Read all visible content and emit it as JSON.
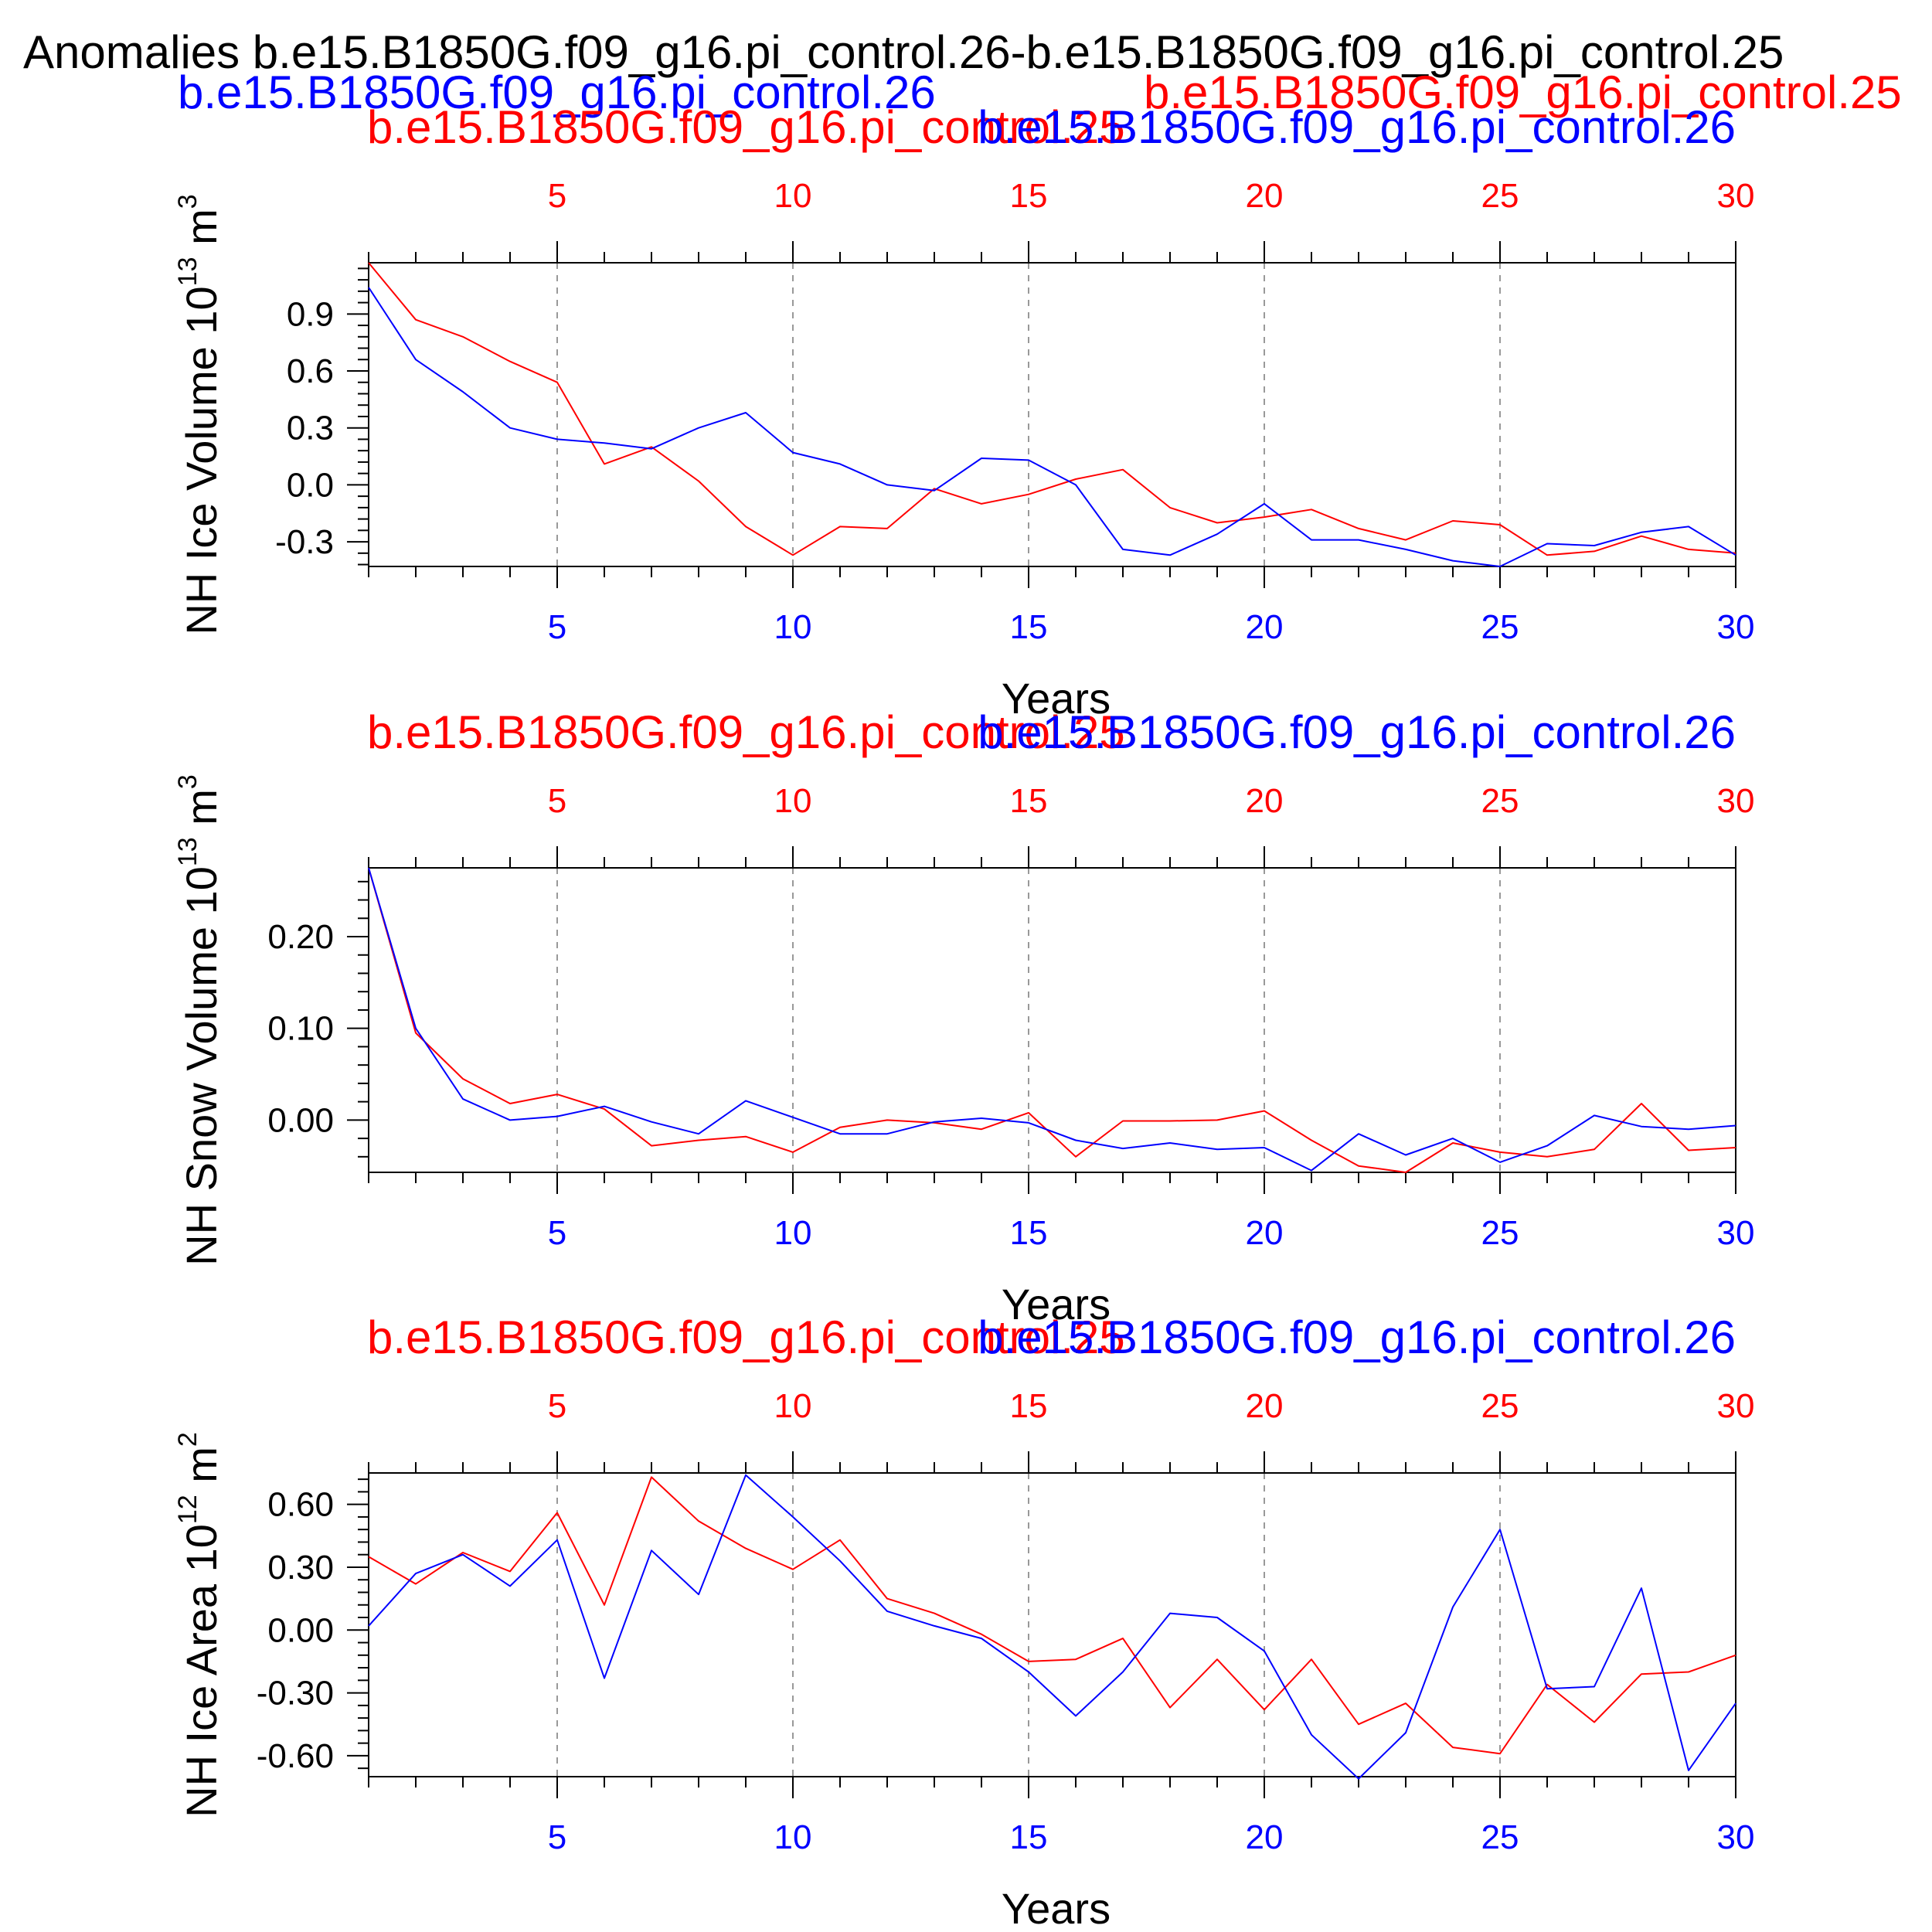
{
  "header": {
    "title": "Anomalies b.e15.B1850G.f09_g16.pi_control.26-b.e15.B1850G.f09_g16.pi_control.25",
    "legend_left": "b.e15.B1850G.f09_g16.pi_control.26",
    "legend_right": "b.e15.B1850G.f09_g16.pi_control.25"
  },
  "colors": {
    "series_a": "#ff0000",
    "series_b": "#0000ff",
    "axis": "#000000",
    "grid": "#999999"
  },
  "chart_data": [
    {
      "type": "line",
      "ylabel_main": "NH Ice Volume 10",
      "ylabel_sup": "13",
      "ylabel_unit": "m",
      "ylabel_unit_sup": "3",
      "xlabel": "Years",
      "top_left_label": "b.e15.B1850G.f09_g16.pi_control.25",
      "top_right_label": "b.e15.B1850G.f09_g16.pi_control.26",
      "xlim": [
        1,
        30
      ],
      "ylim": [
        -0.43,
        1.17
      ],
      "xticks": [
        "5",
        "10",
        "15",
        "20",
        "25",
        "30"
      ],
      "xtick_values": [
        5,
        10,
        15,
        20,
        25,
        30
      ],
      "yticks": [
        "0.9",
        "0.6",
        "0.3",
        "0.0",
        "-0.3"
      ],
      "ytick_values": [
        0.9,
        0.6,
        0.3,
        0.0,
        -0.3
      ],
      "x": [
        1,
        2,
        3,
        4,
        5,
        6,
        7,
        8,
        9,
        10,
        11,
        12,
        13,
        14,
        15,
        16,
        17,
        18,
        19,
        20,
        21,
        22,
        23,
        24,
        25,
        26,
        27,
        28,
        29,
        30
      ],
      "series": [
        {
          "name": "b.e15.B1850G.f09_g16.pi_control.25",
          "color": "#ff0000",
          "values": [
            1.17,
            0.87,
            0.78,
            0.65,
            0.54,
            0.11,
            0.2,
            0.02,
            -0.22,
            -0.37,
            -0.22,
            -0.23,
            -0.02,
            -0.1,
            -0.05,
            0.03,
            0.08,
            -0.12,
            -0.2,
            -0.17,
            -0.13,
            -0.23,
            -0.29,
            -0.19,
            -0.21,
            -0.37,
            -0.35,
            -0.27,
            -0.34,
            -0.36
          ]
        },
        {
          "name": "b.e15.B1850G.f09_g16.pi_control.26",
          "color": "#0000ff",
          "values": [
            1.04,
            0.66,
            0.49,
            0.3,
            0.24,
            0.22,
            0.19,
            0.3,
            0.38,
            0.17,
            0.11,
            0.0,
            -0.03,
            0.14,
            0.13,
            0.0,
            -0.34,
            -0.37,
            -0.26,
            -0.1,
            -0.29,
            -0.29,
            -0.34,
            -0.4,
            -0.43,
            -0.31,
            -0.32,
            -0.25,
            -0.22,
            -0.37
          ]
        }
      ]
    },
    {
      "type": "line",
      "ylabel_main": "NH Snow Volume 10",
      "ylabel_sup": "13",
      "ylabel_unit": "m",
      "ylabel_unit_sup": "3",
      "xlabel": "Years",
      "top_left_label": "b.e15.B1850G.f09_g16.pi_control.25",
      "top_right_label": "b.e15.B1850G.f09_g16.pi_control.26",
      "xlim": [
        1,
        30
      ],
      "ylim": [
        -0.057,
        0.275
      ],
      "xticks": [
        "5",
        "10",
        "15",
        "20",
        "25",
        "30"
      ],
      "xtick_values": [
        5,
        10,
        15,
        20,
        25,
        30
      ],
      "yticks": [
        "0.20",
        "0.10",
        "0.00"
      ],
      "ytick_values": [
        0.2,
        0.1,
        0.0
      ],
      "x": [
        1,
        2,
        3,
        4,
        5,
        6,
        7,
        8,
        9,
        10,
        11,
        12,
        13,
        14,
        15,
        16,
        17,
        18,
        19,
        20,
        21,
        22,
        23,
        24,
        25,
        26,
        27,
        28,
        29,
        30
      ],
      "series": [
        {
          "name": "b.e15.B1850G.f09_g16.pi_control.25",
          "color": "#ff0000",
          "values": [
            0.275,
            0.095,
            0.045,
            0.018,
            0.028,
            0.012,
            -0.028,
            -0.022,
            -0.018,
            -0.035,
            -0.008,
            0.0,
            -0.003,
            -0.01,
            0.008,
            -0.04,
            -0.001,
            -0.001,
            0.0,
            0.01,
            -0.022,
            -0.05,
            -0.057,
            -0.025,
            -0.035,
            -0.04,
            -0.032,
            0.018,
            -0.033,
            -0.03
          ]
        },
        {
          "name": "b.e15.B1850G.f09_g16.pi_control.26",
          "color": "#0000ff",
          "values": [
            0.275,
            0.1,
            0.023,
            0.0,
            0.004,
            0.015,
            -0.002,
            -0.015,
            0.021,
            0.003,
            -0.015,
            -0.015,
            -0.002,
            0.002,
            -0.003,
            -0.022,
            -0.031,
            -0.025,
            -0.032,
            -0.03,
            -0.055,
            -0.015,
            -0.038,
            -0.02,
            -0.046,
            -0.028,
            0.005,
            -0.007,
            -0.01,
            -0.006
          ]
        }
      ]
    },
    {
      "type": "line",
      "ylabel_main": "NH Ice Area 10",
      "ylabel_sup": "12",
      "ylabel_unit": "m",
      "ylabel_unit_sup": "2",
      "xlabel": "Years",
      "top_left_label": "b.e15.B1850G.f09_g16.pi_control.25",
      "top_right_label": "b.e15.B1850G.f09_g16.pi_control.26",
      "xlim": [
        1,
        30
      ],
      "ylim": [
        -0.7,
        0.75
      ],
      "xticks": [
        "5",
        "10",
        "15",
        "20",
        "25",
        "30"
      ],
      "xtick_values": [
        5,
        10,
        15,
        20,
        25,
        30
      ],
      "yticks": [
        "0.60",
        "0.30",
        "0.00",
        "-0.30",
        "-0.60"
      ],
      "ytick_values": [
        0.6,
        0.3,
        0.0,
        -0.3,
        -0.6
      ],
      "x": [
        1,
        2,
        3,
        4,
        5,
        6,
        7,
        8,
        9,
        10,
        11,
        12,
        13,
        14,
        15,
        16,
        17,
        18,
        19,
        20,
        21,
        22,
        23,
        24,
        25,
        26,
        27,
        28,
        29,
        30
      ],
      "series": [
        {
          "name": "b.e15.B1850G.f09_g16.pi_control.25",
          "color": "#ff0000",
          "values": [
            0.35,
            0.22,
            0.37,
            0.28,
            0.56,
            0.12,
            0.73,
            0.52,
            0.39,
            0.29,
            0.43,
            0.15,
            0.08,
            -0.02,
            -0.15,
            -0.14,
            -0.04,
            -0.37,
            -0.14,
            -0.38,
            -0.14,
            -0.45,
            -0.35,
            -0.56,
            -0.59,
            -0.26,
            -0.44,
            -0.21,
            -0.2,
            -0.12
          ]
        },
        {
          "name": "b.e15.B1850G.f09_g16.pi_control.26",
          "color": "#0000ff",
          "values": [
            0.02,
            0.27,
            0.36,
            0.21,
            0.43,
            -0.23,
            0.38,
            0.17,
            0.74,
            0.54,
            0.33,
            0.09,
            0.02,
            -0.04,
            -0.2,
            -0.41,
            -0.2,
            0.08,
            0.06,
            -0.1,
            -0.5,
            -0.71,
            -0.49,
            0.11,
            0.48,
            -0.28,
            -0.27,
            0.2,
            -0.67,
            -0.35
          ]
        }
      ]
    }
  ]
}
